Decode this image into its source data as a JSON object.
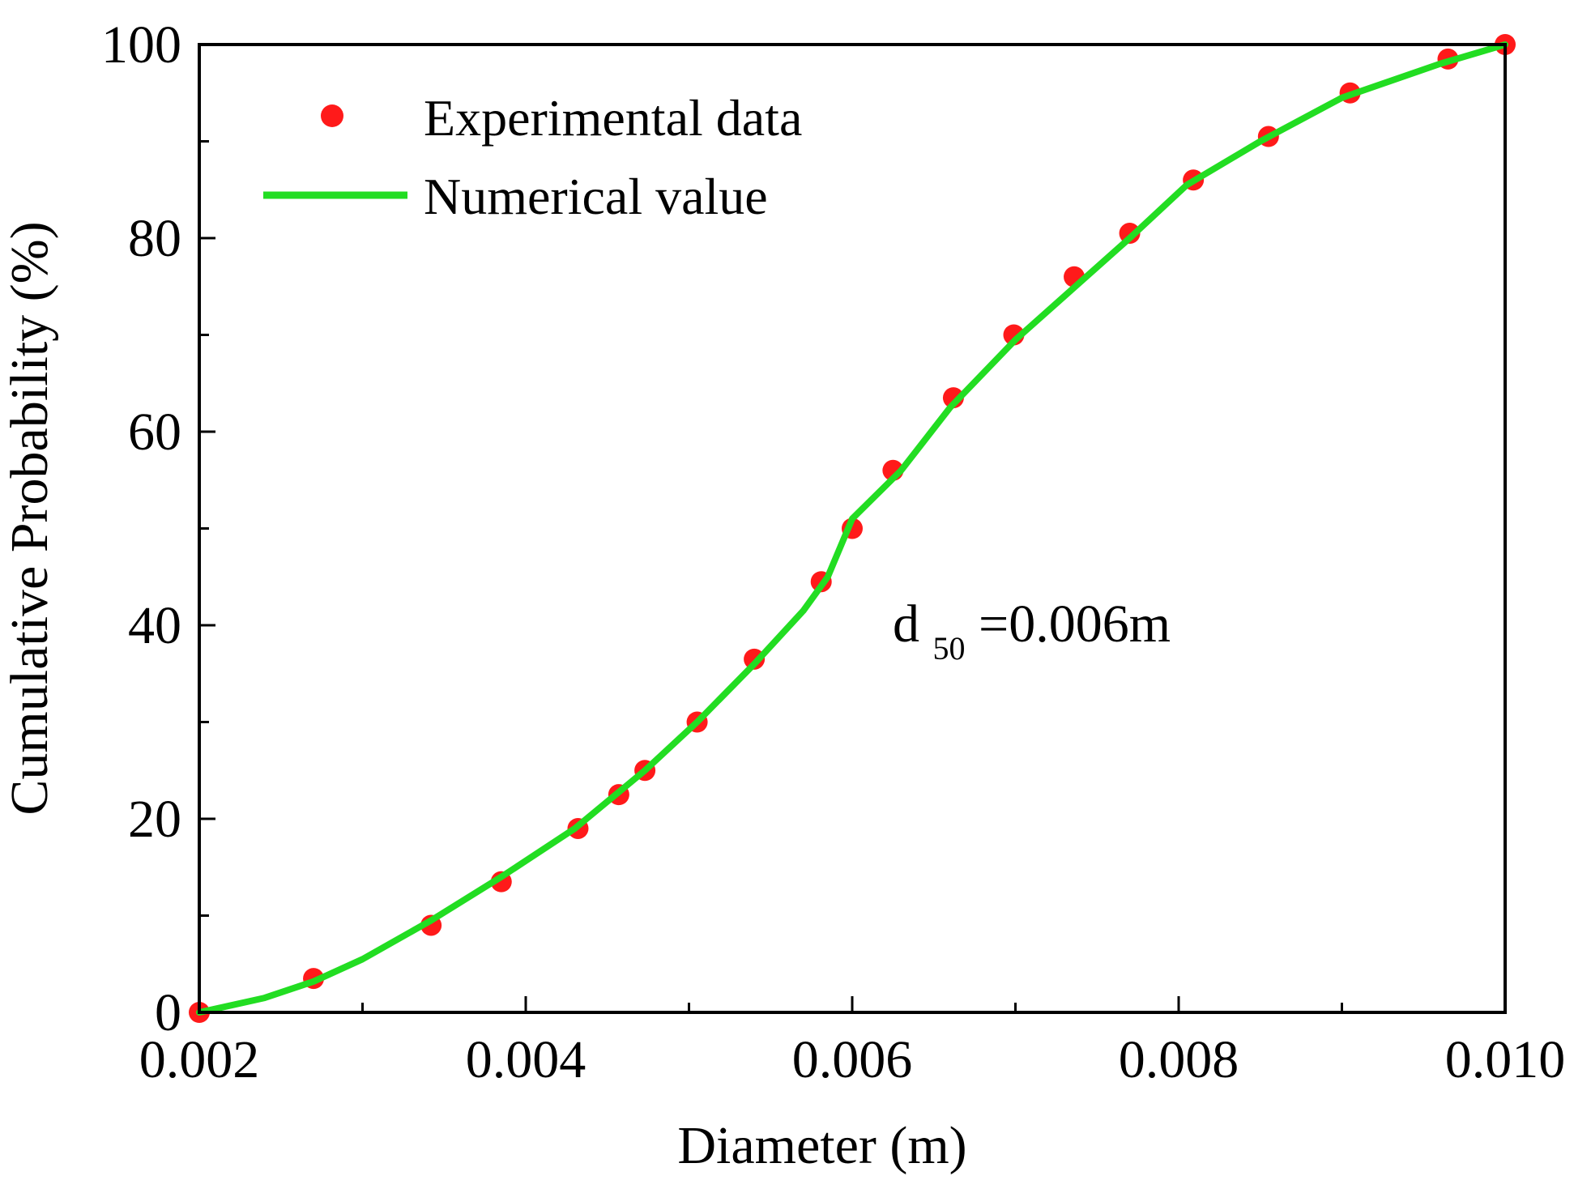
{
  "chart_data": {
    "type": "scatter",
    "xlabel": "Diameter (m)",
    "ylabel": "Cumulative Probability (%)",
    "xlim": [
      0.002,
      0.01
    ],
    "ylim": [
      0,
      100
    ],
    "xticks": [
      "0.002",
      "0.004",
      "0.006",
      "0.008",
      "0.010"
    ],
    "yticks": [
      "0",
      "20",
      "40",
      "60",
      "80",
      "100"
    ],
    "grid": false,
    "legend_position": "top-left",
    "annotation": {
      "base": "d",
      "sub": "50",
      "rest": "=0.006m"
    },
    "series": [
      {
        "name": "Experimental data",
        "kind": "points",
        "color": "#ff1a1a",
        "x": [
          0.002,
          0.0027,
          0.00342,
          0.00385,
          0.00432,
          0.00457,
          0.00473,
          0.00505,
          0.0054,
          0.00581,
          0.006,
          0.00625,
          0.00662,
          0.00699,
          0.00736,
          0.0077,
          0.00809,
          0.00855,
          0.00905,
          0.00965,
          0.01
        ],
        "y": [
          0,
          3.5,
          9,
          13.5,
          19,
          22.5,
          25,
          30,
          36.5,
          44.5,
          50,
          56,
          63.5,
          70,
          76,
          80.5,
          86,
          90.5,
          95,
          98.5,
          100
        ]
      },
      {
        "name": "Numerical value",
        "kind": "line",
        "color": "#22dd22",
        "x": [
          0.002,
          0.0024,
          0.0027,
          0.003,
          0.00342,
          0.00385,
          0.0043,
          0.00473,
          0.00505,
          0.0054,
          0.0057,
          0.00585,
          0.006,
          0.0063,
          0.0066,
          0.007,
          0.0074,
          0.0077,
          0.00805,
          0.0085,
          0.009,
          0.0096,
          0.01
        ],
        "y": [
          0,
          1.5,
          3.2,
          5.5,
          9.5,
          14,
          19,
          25,
          30,
          36,
          41.5,
          45,
          51,
          56,
          62.5,
          69.5,
          75.5,
          80,
          85.5,
          90,
          94.5,
          98,
          100
        ]
      }
    ]
  }
}
